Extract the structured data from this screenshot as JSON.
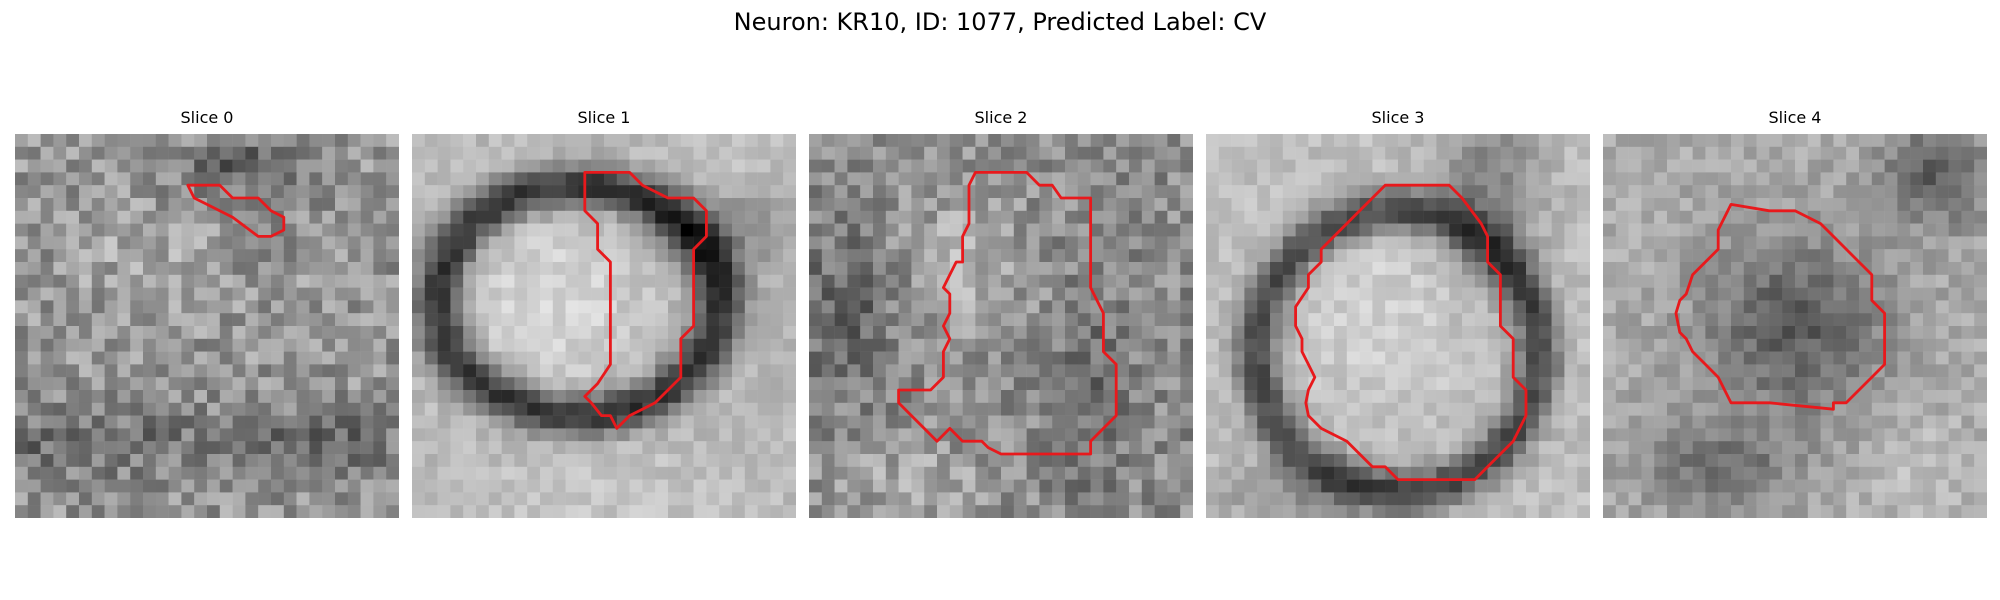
{
  "figure": {
    "title": "Neuron: KR10, ID: 1077, Predicted Label: CV",
    "contour_color": "#e8191c"
  },
  "panels": [
    {
      "title": "Slice 0"
    },
    {
      "title": "Slice 1"
    },
    {
      "title": "Slice 2"
    },
    {
      "title": "Slice 3"
    },
    {
      "title": "Slice 4"
    }
  ]
}
